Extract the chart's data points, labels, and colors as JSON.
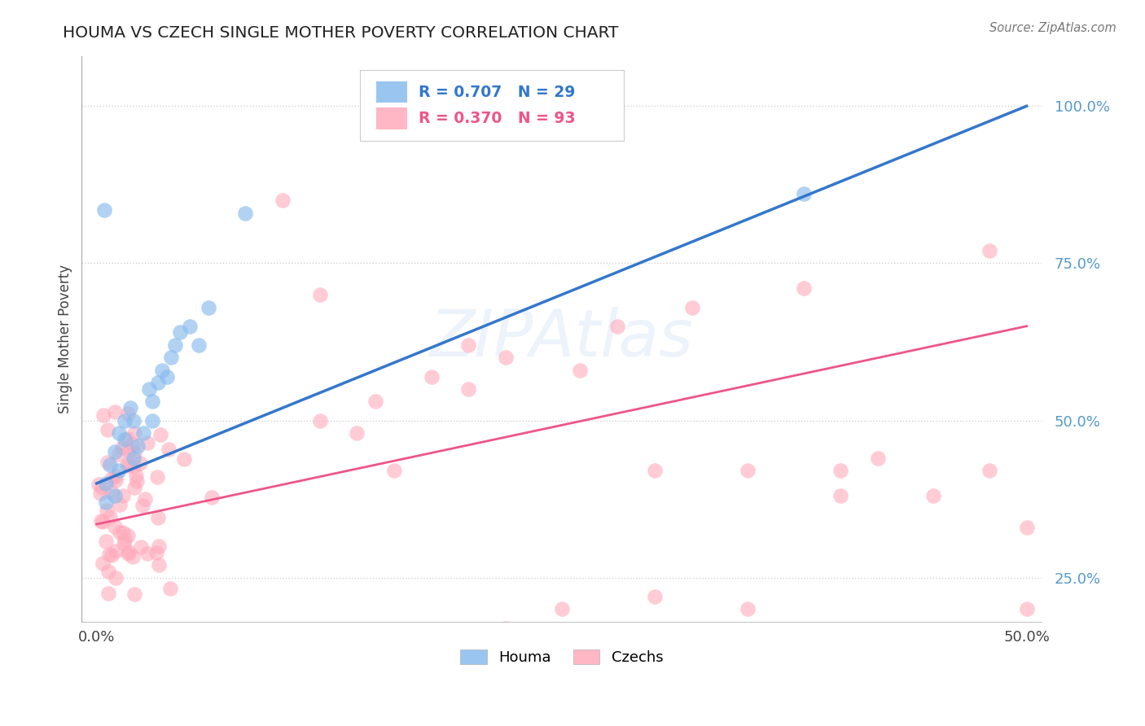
{
  "title": "HOUMA VS CZECH SINGLE MOTHER POVERTY CORRELATION CHART",
  "source": "Source: ZipAtlas.com",
  "ylabel": "Single Mother Poverty",
  "yticks": [
    0.25,
    0.5,
    0.75,
    1.0
  ],
  "ytick_labels": [
    "25.0%",
    "50.0%",
    "75.0%",
    "100.0%"
  ],
  "xlim": [
    0.0,
    0.5
  ],
  "ylim": [
    0.18,
    1.08
  ],
  "houma_color": "#88bbee",
  "czech_color": "#ffaabb",
  "houma_line_color": "#3377cc",
  "czech_line_color": "#ee5588",
  "houma_R": 0.707,
  "houma_N": 29,
  "czech_R": 0.37,
  "czech_N": 93,
  "background_color": "#ffffff",
  "grid_color": "#cccccc",
  "legend_text_blue": "#3377cc",
  "legend_text_pink": "#ee5588",
  "ytick_color": "#5599cc",
  "title_color": "#222222",
  "source_color": "#777777",
  "houma_line_y0": 0.4,
  "houma_line_y1": 1.0,
  "czech_line_y0": 0.335,
  "czech_line_y1": 0.65
}
